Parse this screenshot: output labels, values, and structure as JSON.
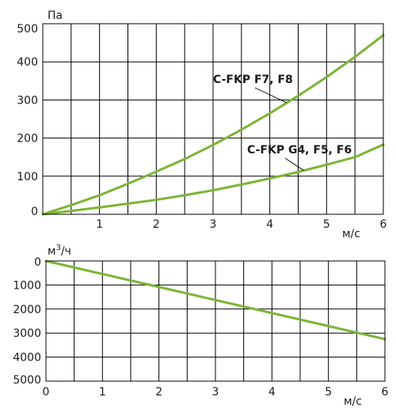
{
  "colors": {
    "curve": "#7ab534",
    "grid": "#000000",
    "text": "#1a1a1a"
  },
  "chart_data": [
    {
      "type": "line",
      "title": "",
      "xlabel": "м/с",
      "ylabel": "Па",
      "xlim": [
        0,
        6
      ],
      "ylim": [
        0,
        500
      ],
      "x_ticks": [
        "1",
        "2",
        "3",
        "4",
        "5",
        "6"
      ],
      "y_ticks": [
        "0",
        "100",
        "200",
        "300",
        "400",
        "500"
      ],
      "y_tick_values": [
        0,
        100,
        200,
        300,
        400,
        500
      ],
      "grid": true,
      "series": [
        {
          "name": "C-FKP F7, F8",
          "x": [
            0,
            0.5,
            1,
            1.5,
            2,
            2.5,
            3,
            3.5,
            4,
            4.5,
            5,
            5.5,
            6
          ],
          "y": [
            0,
            24,
            50,
            80,
            112,
            145,
            182,
            222,
            265,
            311,
            360,
            413,
            470
          ]
        },
        {
          "name": "C-FKP G4, F5, F6",
          "x": [
            0,
            0.5,
            1,
            1.5,
            2,
            2.5,
            3,
            3.5,
            4,
            4.5,
            5,
            5.5,
            6
          ],
          "y": [
            0,
            9,
            18,
            28,
            38,
            50,
            63,
            78,
            94,
            111,
            130,
            150,
            183
          ]
        }
      ]
    },
    {
      "type": "line",
      "title": "",
      "xlabel": "м/с",
      "ylabel_base": "м",
      "ylabel_sup": "3",
      "ylabel_tail": "/ч",
      "xlim": [
        0,
        6
      ],
      "ylim": [
        0,
        5000
      ],
      "y_inverted": true,
      "x_ticks": [
        "0",
        "1",
        "2",
        "3",
        "4",
        "5",
        "6"
      ],
      "y_ticks": [
        "0",
        "1000",
        "2000",
        "3000",
        "4000",
        "5000"
      ],
      "y_tick_values": [
        0,
        1000,
        2000,
        3000,
        4000,
        5000
      ],
      "grid": true,
      "series": [
        {
          "x": [
            0,
            6
          ],
          "y": [
            0,
            3250
          ]
        }
      ]
    }
  ]
}
